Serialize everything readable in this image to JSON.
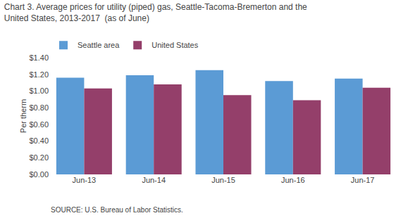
{
  "chart_data": {
    "type": "bar",
    "title": [
      "Chart 3. Average prices for utility (piped) gas, Seattle-Tacoma-Bremerton and the",
      "United States, 2013-2017  (as of June)"
    ],
    "ylabel": "Per therm",
    "annotations": [
      "SOURCE: U.S. Bureau of Labor Statistics."
    ],
    "categories": [
      "Jun-13",
      "Jun-14",
      "Jun-15",
      "Jun-16",
      "Jun-17"
    ],
    "series": [
      {
        "name": "Seattle area",
        "color": "#5B9BD5",
        "values": [
          1.16,
          1.19,
          1.25,
          1.12,
          1.15
        ]
      },
      {
        "name": "United States",
        "color": "#943F6A",
        "values": [
          1.03,
          1.08,
          0.95,
          0.89,
          1.04
        ]
      }
    ],
    "ylim": [
      0,
      1.4
    ],
    "yticks": [
      {
        "value": 0,
        "label": "$0.00"
      },
      {
        "value": 0.2,
        "label": "$0.20"
      },
      {
        "value": 0.4,
        "label": "$0.40"
      },
      {
        "value": 0.6,
        "label": "$0.60"
      },
      {
        "value": 0.8,
        "label": "$0.80"
      },
      {
        "value": 1.0,
        "label": "$1.00"
      },
      {
        "value": 1.2,
        "label": "$1.20"
      },
      {
        "value": 1.4,
        "label": "$1.40"
      }
    ],
    "grid": false,
    "legend": "upper left"
  }
}
